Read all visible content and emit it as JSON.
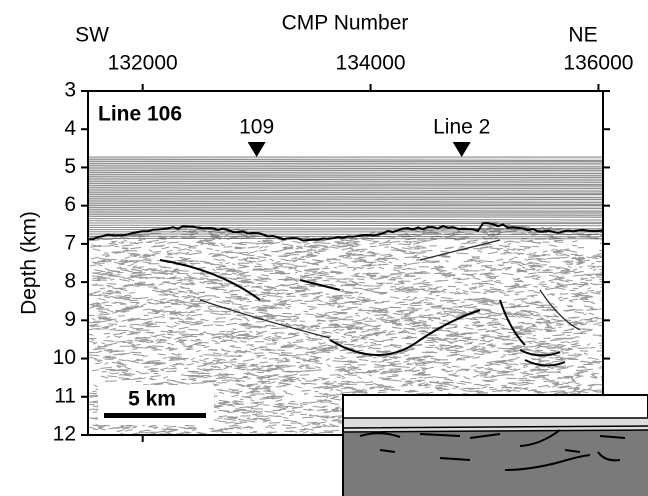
{
  "chart_data": {
    "type": "seismic",
    "title": "CMP Number",
    "y_label": "Depth (km)",
    "left_label": "SW",
    "right_label": "NE",
    "panel_label": "Line 106",
    "scale_bar_label": "5 km",
    "xlim": [
      131520,
      136040
    ],
    "xticks": [
      132000,
      134000,
      136000
    ],
    "ylim": [
      12,
      3
    ],
    "yticks": [
      3,
      4,
      5,
      6,
      7,
      8,
      9,
      10,
      11,
      12
    ],
    "markers": [
      {
        "label": "109",
        "x": 133000
      },
      {
        "label": "Line 2",
        "x": 134800
      }
    ]
  }
}
